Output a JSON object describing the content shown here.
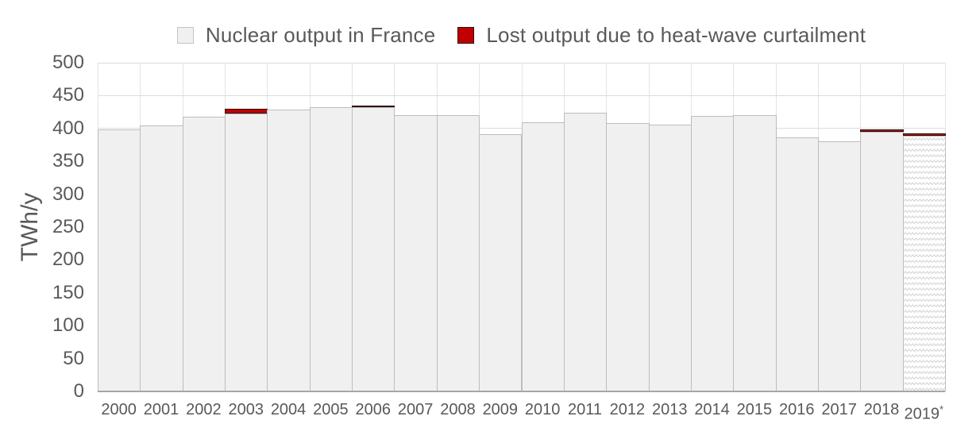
{
  "legend": {
    "items": [
      {
        "label": "Nuclear output in France",
        "swatch_color": "#f0f0f0",
        "swatch_border": "#c3c3c3"
      },
      {
        "label": "Lost output due to heat-wave curtailment",
        "swatch_color": "#c00000",
        "swatch_border": "#2e0b0b"
      }
    ]
  },
  "chart_data": {
    "type": "bar",
    "stacked": true,
    "title": "",
    "xlabel": "",
    "ylabel": "TWh/y",
    "ylim": [
      0,
      500
    ],
    "ytick_step": 50,
    "yticks": [
      0,
      50,
      100,
      150,
      200,
      250,
      300,
      350,
      400,
      450,
      500
    ],
    "grid": true,
    "legend_position": "top",
    "categories": [
      "2000",
      "2001",
      "2002",
      "2003",
      "2004",
      "2005",
      "2006",
      "2007",
      "2008",
      "2009",
      "2010",
      "2011",
      "2012",
      "2013",
      "2014",
      "2015",
      "2016",
      "2017",
      "2018",
      "2019*"
    ],
    "series": [
      {
        "name": "Nuclear output in France",
        "color": "#f0f0f0",
        "values": [
          398,
          404,
          418,
          423,
          429,
          432,
          432,
          420,
          420,
          391,
          410,
          424,
          408,
          406,
          419,
          420,
          387,
          381,
          395,
          389
        ]
      },
      {
        "name": "Lost output due to heat-wave curtailment",
        "color": "#c00000",
        "values": [
          0,
          0,
          0,
          7,
          0,
          0,
          3,
          0,
          0,
          0,
          0,
          0,
          0,
          0,
          0,
          0,
          0,
          0,
          4,
          4
        ]
      }
    ],
    "notes": {
      "estimated_category": "2019*",
      "estimated_style": "hatched-zigzag"
    }
  },
  "colors": {
    "bar_fill": "#f0f0f0",
    "bar_border": "#bdbdbd",
    "curtailment_fill": "#c00000",
    "curtailment_border": "#2e0b0b",
    "gridline": "#dcdcdc",
    "axis_line": "#a6a6a6",
    "text": "#595959",
    "background": "#ffffff"
  }
}
